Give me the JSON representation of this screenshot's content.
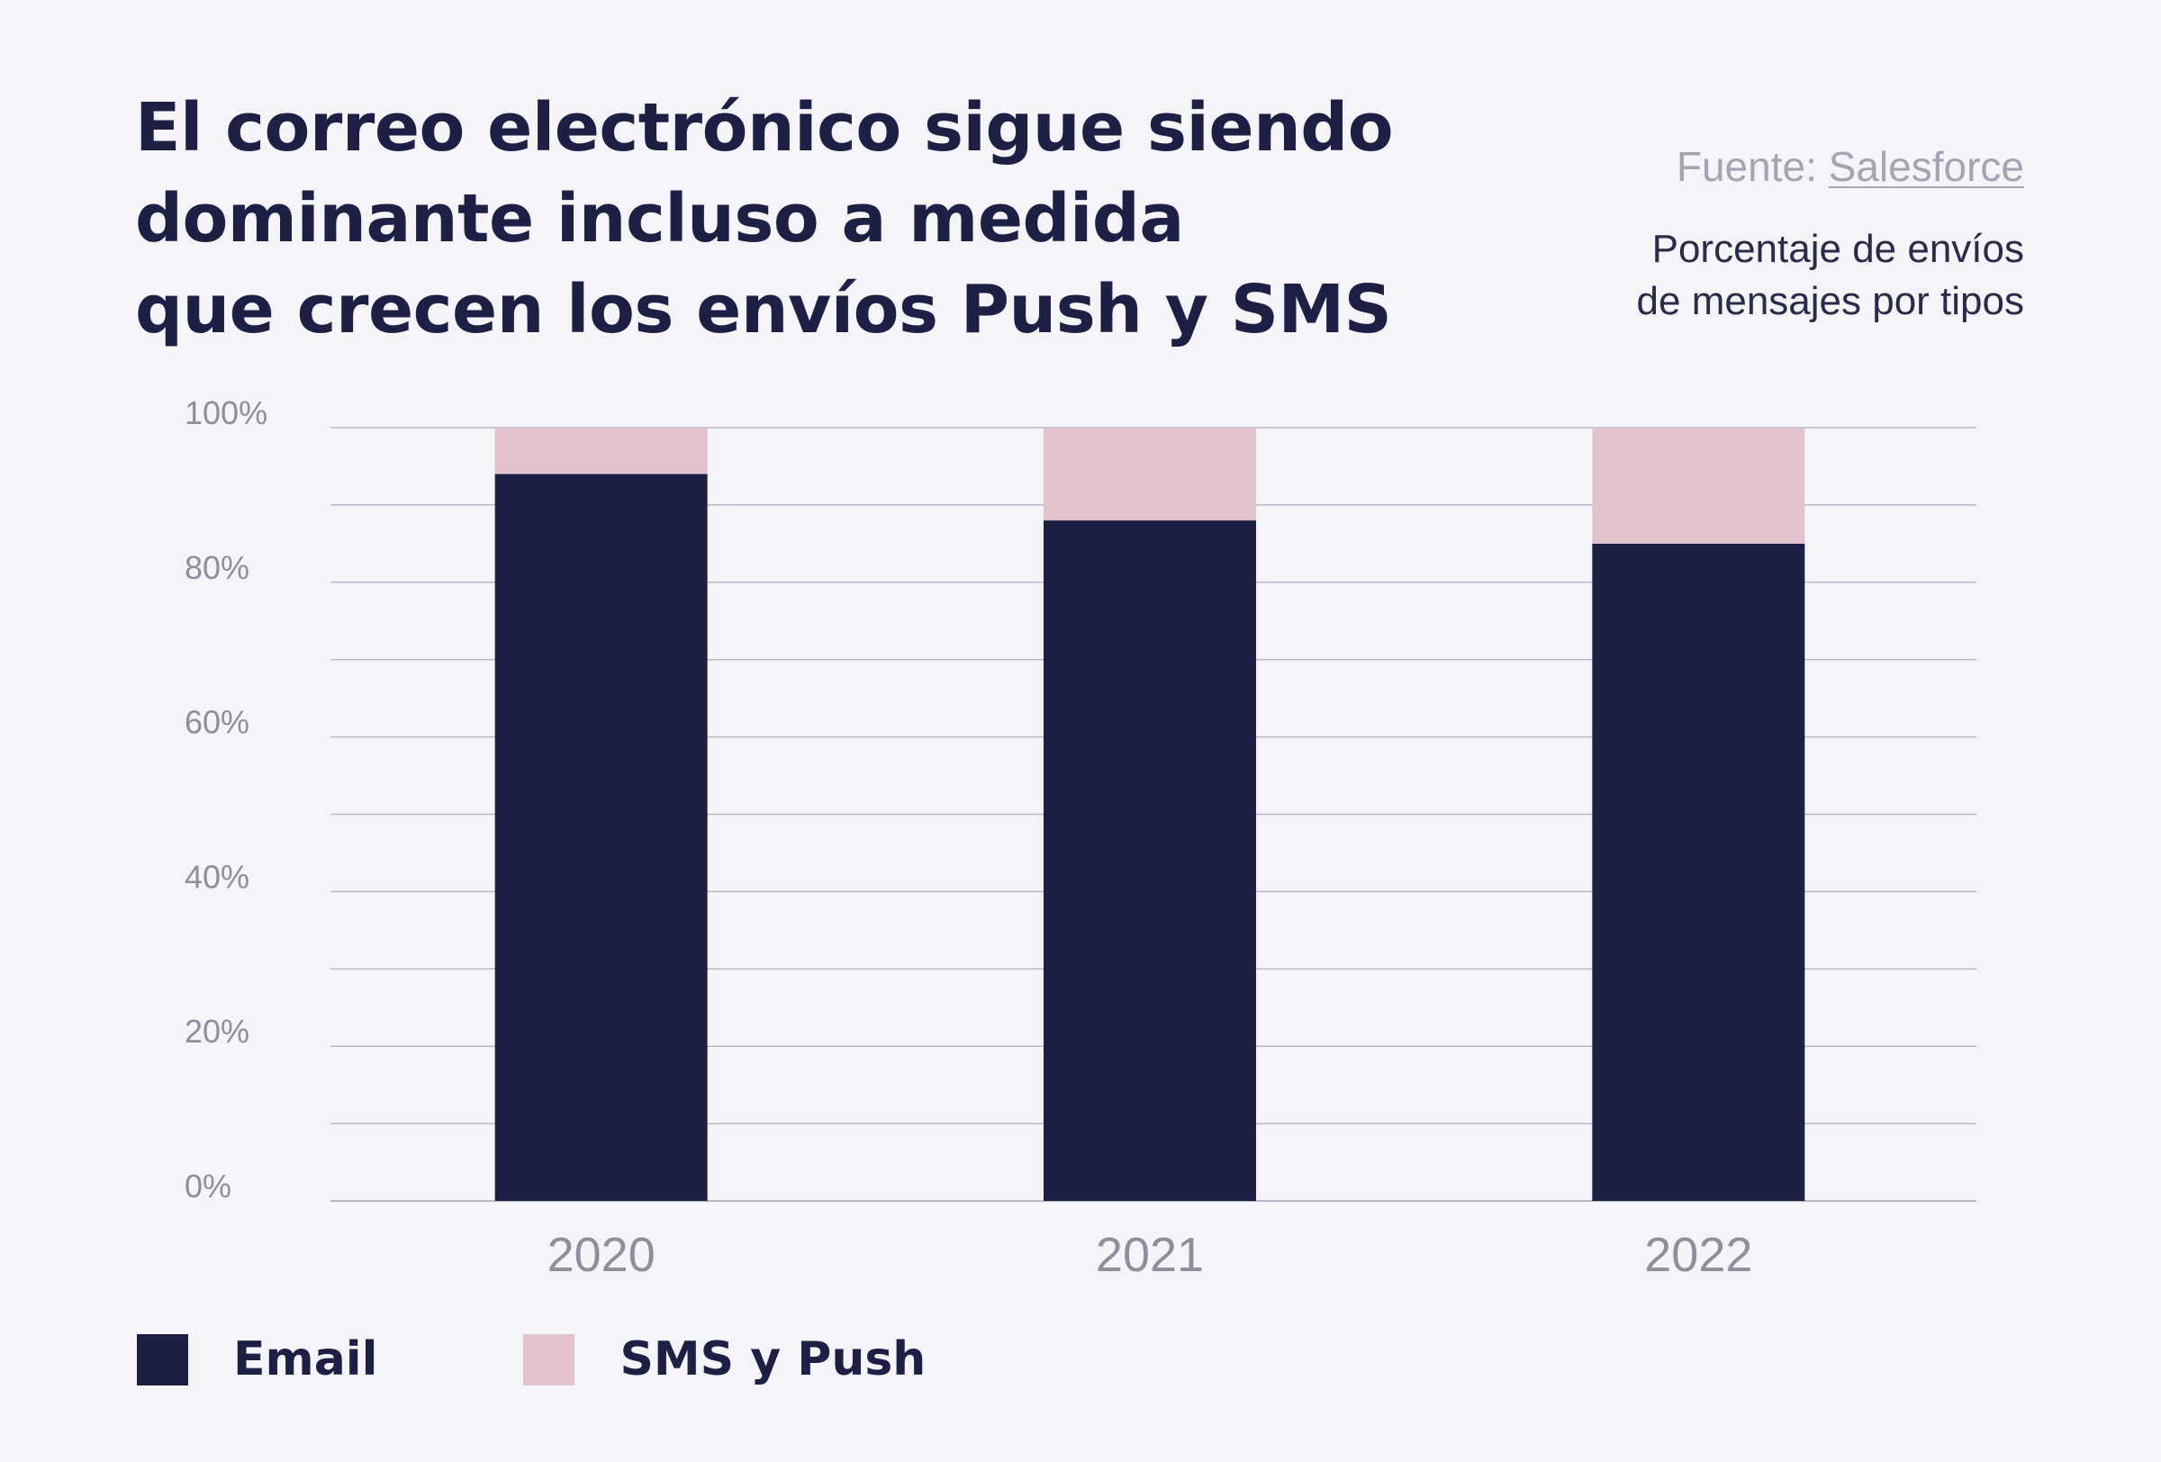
{
  "title_lines": [
    "El correo electrónico sigue siendo",
    "dominante incluso a medida",
    "que crecen los envíos Push y SMS"
  ],
  "source_prefix": "Fuente: ",
  "source_link": "Salesforce",
  "subtitle_lines": [
    "Porcentaje de envíos",
    "de mensajes por tipos"
  ],
  "colors": {
    "email": "#1e1f45",
    "sms_push": "#e2c3cd",
    "grid": "#b7b8c6",
    "tick_text": "#8e8f9c"
  },
  "legend": [
    {
      "label": "Email",
      "color_key": "email"
    },
    {
      "label": "SMS y Push",
      "color_key": "sms_push"
    }
  ],
  "chart_data": {
    "type": "bar",
    "stacked": true,
    "categories": [
      "2020",
      "2021",
      "2022"
    ],
    "series": [
      {
        "name": "Email",
        "values": [
          94,
          88,
          85
        ]
      },
      {
        "name": "SMS y Push",
        "values": [
          6,
          12,
          15
        ]
      }
    ],
    "ylim": [
      0,
      100
    ],
    "yticks": [
      0,
      20,
      40,
      60,
      80,
      100
    ],
    "ytick_labels": [
      "0%",
      "20%",
      "40%",
      "60%",
      "80%",
      "100%"
    ],
    "grid": true,
    "legend_position": "bottom-left"
  }
}
